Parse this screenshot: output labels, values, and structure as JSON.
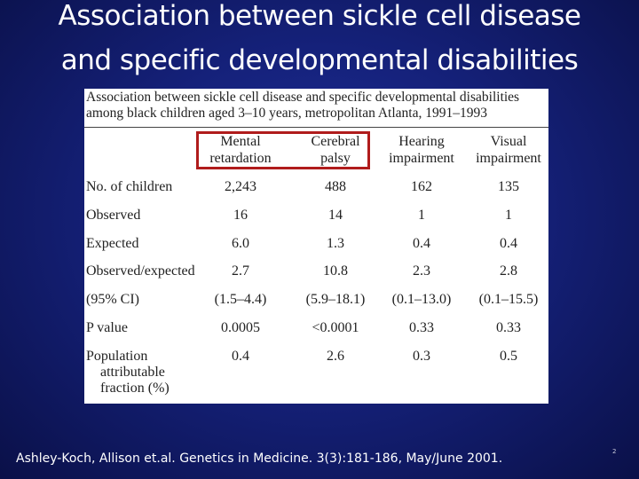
{
  "slide": {
    "title_lines": [
      "Association between sickle cell disease",
      "and specific developmental disabilities"
    ],
    "table": {
      "title_lines": [
        "Association between sickle cell disease and specific developmental disabilities",
        "among black children aged 3–10 years, metropolitan Atlanta, 1991–1993"
      ],
      "columns": [
        [
          "Mental",
          "retardation"
        ],
        [
          "Cerebral",
          "palsy"
        ],
        [
          "Hearing",
          "impairment"
        ],
        [
          "Visual",
          "impairment"
        ]
      ],
      "rows": [
        {
          "label": [
            "No. of children"
          ],
          "values": [
            "2,243",
            "488",
            "162",
            "135"
          ]
        },
        {
          "label": [
            "Observed"
          ],
          "values": [
            "16",
            "14",
            "1",
            "1"
          ]
        },
        {
          "label": [
            "Expected"
          ],
          "values": [
            "6.0",
            "1.3",
            "0.4",
            "0.4"
          ]
        },
        {
          "label": [
            "Observed/expected"
          ],
          "values": [
            "2.7",
            "10.8",
            "2.3",
            "2.8"
          ]
        },
        {
          "label": [
            "(95% CI)"
          ],
          "values": [
            "(1.5–4.4)",
            "(5.9–18.1)",
            "(0.1–13.0)",
            "(0.1–15.5)"
          ]
        },
        {
          "label": [
            "P value"
          ],
          "values": [
            "0.0005",
            "<0.0001",
            "0.33",
            "0.33"
          ]
        },
        {
          "label": [
            "Population",
            "attributable",
            "fraction (%)"
          ],
          "values": [
            "0.4",
            "2.6",
            "0.3",
            "0.5"
          ]
        }
      ]
    },
    "citation": "Ashley-Koch, Allison et.al. Genetics in Medicine. 3(3):181-186, May/June 2001.",
    "page_number": "2"
  }
}
